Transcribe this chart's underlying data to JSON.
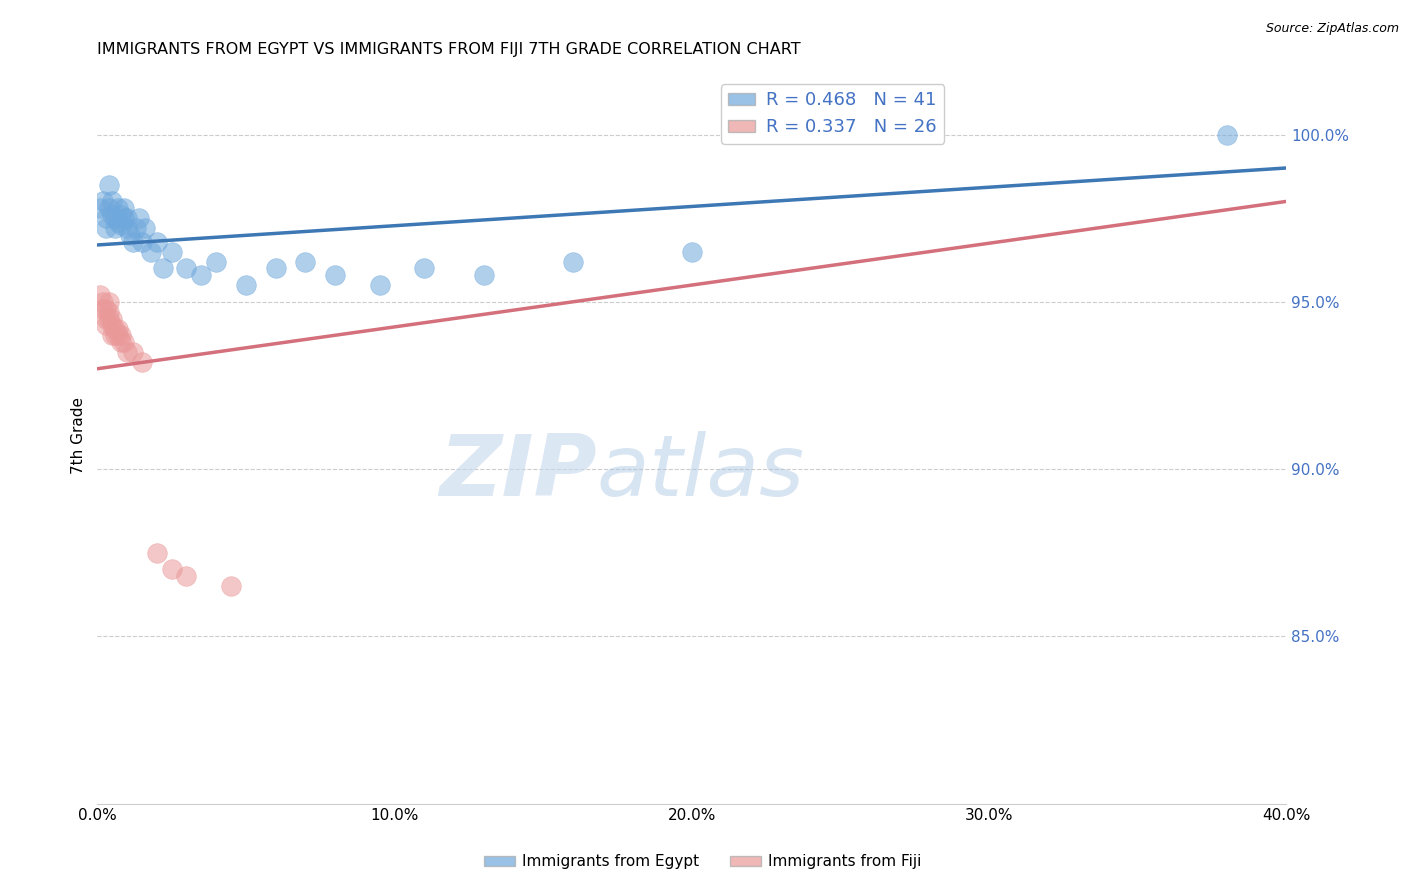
{
  "title": "IMMIGRANTS FROM EGYPT VS IMMIGRANTS FROM FIJI 7TH GRADE CORRELATION CHART",
  "source": "Source: ZipAtlas.com",
  "xlabel_ticks": [
    "0.0%",
    "10.0%",
    "20.0%",
    "30.0%",
    "40.0%"
  ],
  "xlabel_vals": [
    0.0,
    0.1,
    0.2,
    0.3,
    0.4
  ],
  "ylabel_ticks": [
    "100.0%",
    "95.0%",
    "90.0%",
    "85.0%"
  ],
  "ylabel_vals": [
    1.0,
    0.95,
    0.9,
    0.85
  ],
  "ylabel_label": "7th Grade",
  "xlim": [
    0.0,
    0.4
  ],
  "ylim": [
    0.8,
    1.02
  ],
  "egypt_color": "#6fa8dc",
  "fiji_color": "#ea9999",
  "egypt_R": 0.468,
  "egypt_N": 41,
  "fiji_R": 0.337,
  "fiji_N": 26,
  "trend_egypt_color": "#3d78b5",
  "trend_fiji_color": "#d46f7c",
  "legend_egypt": "Immigrants from Egypt",
  "legend_fiji": "Immigrants from Fiji",
  "egypt_x": [
    0.001,
    0.002,
    0.003,
    0.003,
    0.004,
    0.004,
    0.005,
    0.005,
    0.006,
    0.006,
    0.007,
    0.007,
    0.008,
    0.008,
    0.009,
    0.009,
    0.01,
    0.01,
    0.011,
    0.012,
    0.013,
    0.014,
    0.015,
    0.016,
    0.018,
    0.02,
    0.022,
    0.025,
    0.03,
    0.035,
    0.04,
    0.05,
    0.06,
    0.07,
    0.08,
    0.095,
    0.11,
    0.13,
    0.16,
    0.2,
    0.38
  ],
  "egypt_y": [
    0.978,
    0.98,
    0.975,
    0.972,
    0.985,
    0.978,
    0.976,
    0.98,
    0.972,
    0.975,
    0.978,
    0.974,
    0.976,
    0.973,
    0.975,
    0.978,
    0.972,
    0.975,
    0.97,
    0.968,
    0.972,
    0.975,
    0.968,
    0.972,
    0.965,
    0.968,
    0.96,
    0.965,
    0.96,
    0.958,
    0.962,
    0.955,
    0.96,
    0.962,
    0.958,
    0.955,
    0.96,
    0.958,
    0.962,
    0.965,
    1.0
  ],
  "fiji_x": [
    0.001,
    0.002,
    0.002,
    0.003,
    0.003,
    0.003,
    0.004,
    0.004,
    0.004,
    0.005,
    0.005,
    0.005,
    0.006,
    0.006,
    0.007,
    0.007,
    0.008,
    0.008,
    0.009,
    0.01,
    0.012,
    0.015,
    0.02,
    0.025,
    0.03,
    0.045
  ],
  "fiji_y": [
    0.952,
    0.95,
    0.948,
    0.948,
    0.945,
    0.943,
    0.95,
    0.947,
    0.945,
    0.945,
    0.943,
    0.94,
    0.942,
    0.94,
    0.942,
    0.94,
    0.94,
    0.938,
    0.938,
    0.935,
    0.935,
    0.932,
    0.875,
    0.87,
    0.868,
    0.865
  ],
  "egypt_trend_x": [
    0.0,
    0.4
  ],
  "egypt_trend_y": [
    0.967,
    0.99
  ],
  "fiji_trend_x": [
    0.0,
    0.4
  ],
  "fiji_trend_y": [
    0.93,
    0.98
  ],
  "watermark_zip": "ZIP",
  "watermark_atlas": "atlas",
  "background_color": "#ffffff",
  "grid_color": "#cccccc"
}
